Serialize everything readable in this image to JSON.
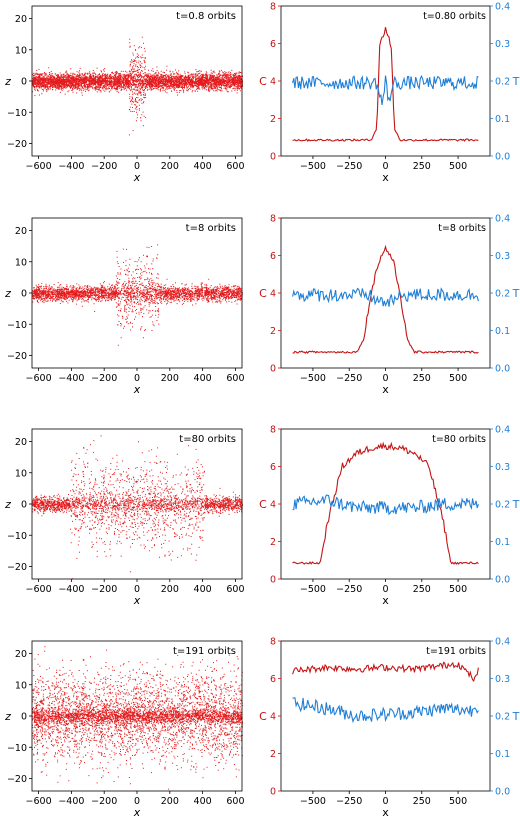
{
  "colors": {
    "scatter": "#e41a1c",
    "c_line": "#c41414",
    "t_line": "#1f7fd6",
    "axis": "#000000"
  },
  "chart_data": [
    {
      "type": "scatter",
      "title": "t=0.8 orbits",
      "xlabel": "x",
      "ylabel": "z",
      "xlim": [
        -640,
        640
      ],
      "ylim": [
        -24,
        24
      ],
      "xticks": [
        -600,
        -400,
        -200,
        0,
        200,
        400,
        600
      ],
      "yticks": [
        -20,
        -10,
        0,
        10,
        20
      ],
      "series": [
        {
          "values_description_free": true,
          "x": [
            -600,
            -300,
            0,
            300,
            600
          ],
          "y": [
            0,
            0,
            0,
            0,
            0
          ]
        }
      ],
      "distribution": {
        "disk_sigma": 1.3,
        "cloud_halfwidth": 50,
        "cloud_sigma": 6
      }
    },
    {
      "type": "line",
      "title": "t=0.80 orbits",
      "xlabel": "x",
      "ylabel": "C",
      "ylabel_right": "T",
      "xlim": [
        -720,
        720
      ],
      "ylim": [
        0,
        8
      ],
      "ylim_right": [
        0,
        0.4
      ],
      "xticks": [
        -500,
        -250,
        0,
        250,
        500
      ],
      "yticks": [
        0,
        2,
        4,
        6,
        8
      ],
      "yticks_right": [
        0.0,
        0.1,
        0.2,
        0.3,
        0.4
      ],
      "series": [
        {
          "axis": "left",
          "x": [
            -640,
            -300,
            -100,
            -60,
            -40,
            -20,
            0,
            20,
            40,
            60,
            100,
            300,
            640
          ],
          "values": [
            0.85,
            0.85,
            0.85,
            1.5,
            5.8,
            6.4,
            6.8,
            6.4,
            5.8,
            1.5,
            0.85,
            0.85,
            0.85
          ]
        },
        {
          "axis": "right",
          "x": [
            -640,
            -300,
            -60,
            -40,
            -20,
            0,
            20,
            40,
            60,
            300,
            640
          ],
          "values": [
            0.195,
            0.195,
            0.195,
            0.16,
            0.14,
            0.2,
            0.15,
            0.17,
            0.195,
            0.195,
            0.195
          ]
        }
      ]
    },
    {
      "type": "scatter",
      "title": "t=8 orbits",
      "xlabel": "x",
      "ylabel": "z",
      "xlim": [
        -640,
        640
      ],
      "ylim": [
        -24,
        24
      ],
      "xticks": [
        -600,
        -400,
        -200,
        0,
        200,
        400,
        600
      ],
      "yticks": [
        -20,
        -10,
        0,
        10,
        20
      ],
      "series": [
        {
          "x": [
            -600,
            -300,
            0,
            300,
            600
          ],
          "y": [
            0,
            0,
            0,
            0,
            0
          ]
        }
      ],
      "distribution": {
        "disk_sigma": 1.2,
        "cloud_halfwidth": 130,
        "cloud_sigma": 6
      }
    },
    {
      "type": "line",
      "title": "t=8 orbits",
      "xlabel": "x",
      "ylabel": "C",
      "ylabel_right": "T",
      "xlim": [
        -720,
        720
      ],
      "ylim": [
        0,
        8
      ],
      "ylim_right": [
        0,
        0.4
      ],
      "xticks": [
        -500,
        -250,
        0,
        250,
        500
      ],
      "yticks": [
        0,
        2,
        4,
        6,
        8
      ],
      "yticks_right": [
        0.0,
        0.1,
        0.2,
        0.3,
        0.4
      ],
      "series": [
        {
          "axis": "left",
          "x": [
            -640,
            -200,
            -150,
            -100,
            -50,
            0,
            50,
            100,
            150,
            200,
            640
          ],
          "values": [
            0.85,
            0.85,
            1.5,
            4.0,
            5.6,
            6.4,
            5.8,
            4.0,
            1.5,
            0.85,
            0.85
          ]
        },
        {
          "axis": "right",
          "x": [
            -640,
            -120,
            -60,
            0,
            60,
            120,
            640
          ],
          "values": [
            0.195,
            0.195,
            0.18,
            0.175,
            0.18,
            0.195,
            0.195
          ]
        }
      ]
    },
    {
      "type": "scatter",
      "title": "t=80 orbits",
      "xlabel": "x",
      "ylabel": "z",
      "xlim": [
        -640,
        640
      ],
      "ylim": [
        -24,
        24
      ],
      "xticks": [
        -600,
        -400,
        -200,
        0,
        200,
        400,
        600
      ],
      "yticks": [
        -20,
        -10,
        0,
        10,
        20
      ],
      "series": [
        {
          "x": [
            -600,
            -300,
            0,
            300,
            600
          ],
          "y": [
            0,
            0,
            0,
            0,
            0
          ]
        }
      ],
      "distribution": {
        "disk_sigma": 1.2,
        "cloud_halfwidth": 410,
        "cloud_sigma": 7
      }
    },
    {
      "type": "line",
      "title": "t=80 orbits",
      "xlabel": "x",
      "ylabel": "C",
      "ylabel_right": "T",
      "xlim": [
        -720,
        720
      ],
      "ylim": [
        0,
        8
      ],
      "ylim_right": [
        0,
        0.4
      ],
      "xticks": [
        -500,
        -250,
        0,
        250,
        500
      ],
      "yticks": [
        0,
        2,
        4,
        6,
        8
      ],
      "yticks_right": [
        0.0,
        0.1,
        0.2,
        0.3,
        0.4
      ],
      "series": [
        {
          "axis": "left",
          "x": [
            -640,
            -450,
            -400,
            -300,
            -200,
            -100,
            0,
            100,
            200,
            300,
            400,
            450,
            640
          ],
          "values": [
            0.85,
            0.85,
            3.0,
            6.0,
            6.7,
            7.0,
            7.1,
            7.0,
            6.7,
            6.0,
            3.0,
            0.85,
            0.85
          ]
        },
        {
          "axis": "right",
          "x": [
            -640,
            -400,
            -200,
            0,
            200,
            400,
            640
          ],
          "values": [
            0.2,
            0.21,
            0.19,
            0.19,
            0.19,
            0.2,
            0.2
          ]
        }
      ]
    },
    {
      "type": "scatter",
      "title": "t=191 orbits",
      "xlabel": "x",
      "ylabel": "z",
      "xlim": [
        -640,
        640
      ],
      "ylim": [
        -24,
        24
      ],
      "xticks": [
        -600,
        -400,
        -200,
        0,
        200,
        400,
        600
      ],
      "yticks": [
        -20,
        -10,
        0,
        10,
        20
      ],
      "series": [
        {
          "x": [
            -600,
            -300,
            0,
            300,
            600
          ],
          "y": [
            0,
            0,
            0,
            0,
            0
          ]
        }
      ],
      "distribution": {
        "disk_sigma": 7,
        "cloud_halfwidth": 640,
        "cloud_sigma": 7
      }
    },
    {
      "type": "line",
      "title": "t=191 orbits",
      "xlabel": "x",
      "ylabel": "C",
      "ylabel_right": "T",
      "xlim": [
        -720,
        720
      ],
      "ylim": [
        0,
        8
      ],
      "ylim_right": [
        0,
        0.4
      ],
      "xticks": [
        -500,
        -250,
        0,
        250,
        500
      ],
      "yticks": [
        0,
        2,
        4,
        6,
        8
      ],
      "yticks_right": [
        0.0,
        0.1,
        0.2,
        0.3,
        0.4
      ],
      "series": [
        {
          "axis": "left",
          "x": [
            -640,
            -400,
            -200,
            0,
            200,
            400,
            500,
            580,
            620,
            640
          ],
          "values": [
            6.4,
            6.6,
            6.5,
            6.6,
            6.5,
            6.7,
            6.8,
            6.2,
            5.9,
            6.6
          ]
        },
        {
          "axis": "right",
          "x": [
            -640,
            -400,
            -200,
            0,
            200,
            400,
            600,
            640
          ],
          "values": [
            0.235,
            0.22,
            0.2,
            0.205,
            0.21,
            0.22,
            0.215,
            0.23
          ]
        }
      ]
    }
  ]
}
